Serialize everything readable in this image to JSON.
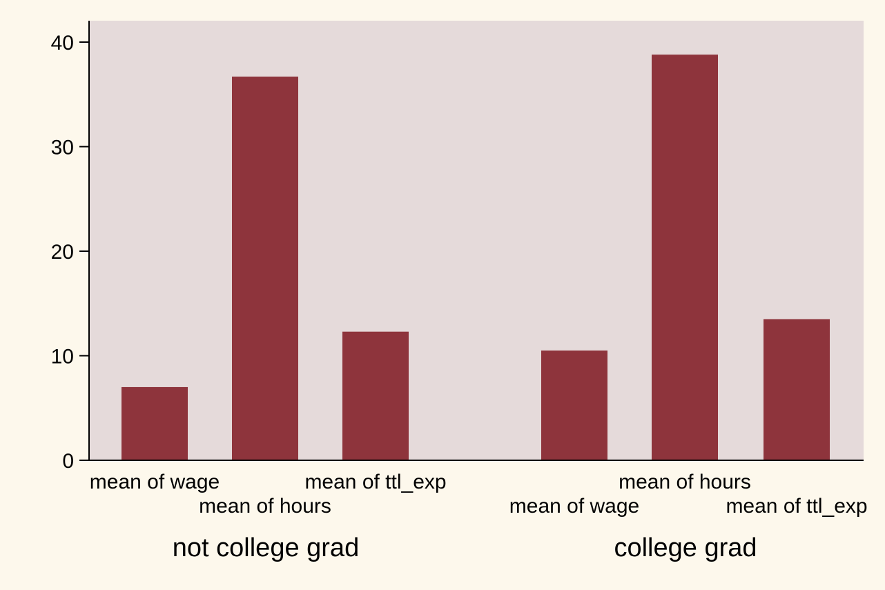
{
  "colors": {
    "page_background": "#fdf8ec",
    "plot_background": "#e5dada",
    "bar": "#8e343c",
    "axis": "#000000"
  },
  "chart_data": {
    "type": "bar",
    "title": "",
    "xlabel": "",
    "ylabel": "",
    "ylim": [
      0,
      42
    ],
    "yticks": [
      0,
      10,
      20,
      30,
      40
    ],
    "grid": false,
    "legend": "none",
    "groups": [
      {
        "label": "not college grad",
        "bars": [
          {
            "label": "mean of wage",
            "value": 7.0
          },
          {
            "label": "mean of hours",
            "value": 36.7
          },
          {
            "label": "mean of ttl_exp",
            "value": 12.3
          }
        ]
      },
      {
        "label": "college grad",
        "bars": [
          {
            "label": "mean of wage",
            "value": 10.5
          },
          {
            "label": "mean of hours",
            "value": 38.8
          },
          {
            "label": "mean of ttl_exp",
            "value": 13.5
          }
        ]
      }
    ]
  }
}
